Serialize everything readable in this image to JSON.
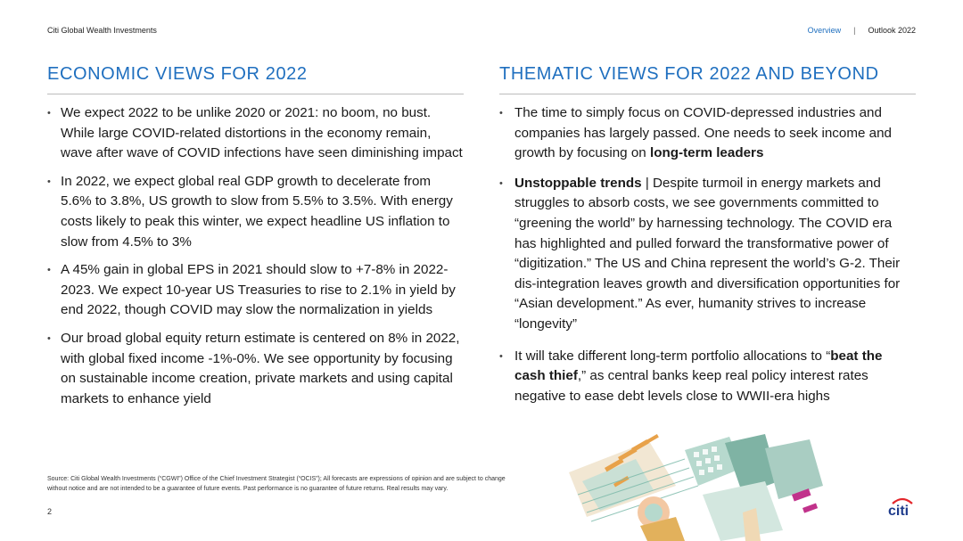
{
  "header": {
    "company": "Citi Global Wealth Investments",
    "nav_active": "Overview",
    "separator": "|",
    "nav_title": "Outlook 2022"
  },
  "left": {
    "heading": "ECONOMIC VIEWS FOR 2022",
    "bullets": [
      "We expect 2022 to be unlike 2020 or 2021: no boom, no bust. While large COVID-related distortions in the economy remain, wave after wave of COVID infections have seen diminishing impact",
      "In 2022, we expect global real GDP growth to decelerate from 5.6% to 3.8%, US growth to slow from 5.5% to 3.5%. With energy costs likely to peak this winter, we expect headline US inflation to slow from 4.5% to 3%",
      "A 45% gain in global EPS in 2021 should slow to +7-8% in 2022-2023. We expect 10-year US Treasuries to rise to 2.1% in yield by end 2022, though COVID may slow the normalization in yields",
      "Our broad global equity return estimate is centered on 8% in 2022, with global fixed income -1%-0%. We see opportunity by focusing on sustainable income creation, private markets and using capital markets to enhance yield"
    ]
  },
  "right": {
    "heading": "THEMATIC VIEWS FOR 2022 AND BEYOND",
    "bullet1": {
      "text": "The time to simply focus on COVID-depressed industries and companies has largely passed. One needs to seek income and growth by focusing on ",
      "bold": "long-term leaders"
    },
    "bullet2": {
      "bold": "Unstoppable trends",
      "text": " | Despite turmoil in energy markets and struggles to absorb costs, we see governments committed to “greening the world” by harnessing technology. The COVID era has highlighted and pulled forward the transformative power of  “digitization.” The US and China represent the world’s G-2. Their dis-integration leaves growth and diversification opportunities for “Asian development.” As ever, humanity strives to increase “longevity”"
    },
    "bullet3": {
      "text_before": "It will take different long-term portfolio allocations to “",
      "bold": "beat the cash thief",
      "text_after": ",” as central banks keep real policy interest rates negative to ease debt levels close to WWII-era highs"
    }
  },
  "footer": {
    "source": "Source: Citi Global Wealth Investments (“CGWI”) Office of the Chief Investment Strategist (“OCIS”); All forecasts are expressions of opinion and are subject to change without notice and are not intended to be a guarantee of future events. Past performance is no guarantee of future returns. Real results may vary.",
    "page": "2"
  },
  "logo": {
    "text": "citi",
    "colors": {
      "text": "#1f3c8c",
      "arc": "#e3262b"
    }
  },
  "colors": {
    "heading": "#1f6fbf",
    "rule": "#bcbcbc",
    "nav_active": "#1f6fbf"
  }
}
